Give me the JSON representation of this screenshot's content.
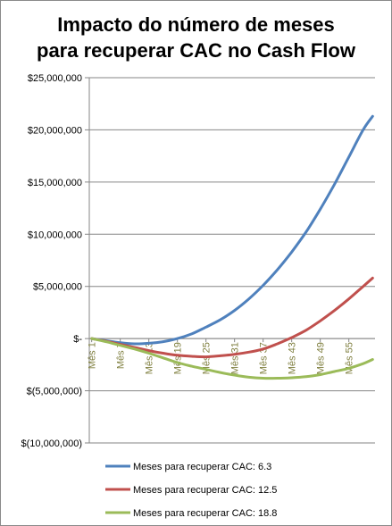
{
  "chart_data": {
    "type": "line",
    "title_lines": [
      "Impacto do número de meses",
      "para recuperar CAC no Cash Flow"
    ],
    "ylim": [
      -10000000,
      25000000
    ],
    "y_ticks": [
      {
        "value": 25000000,
        "label": "$25,000,000"
      },
      {
        "value": 20000000,
        "label": "$20,000,000"
      },
      {
        "value": 15000000,
        "label": "$15,000,000"
      },
      {
        "value": 10000000,
        "label": "$10,000,000"
      },
      {
        "value": 5000000,
        "label": "$5,000,000"
      },
      {
        "value": 0,
        "label": "$-"
      },
      {
        "value": -5000000,
        "label": "$(5,000,000)"
      },
      {
        "value": -10000000,
        "label": "$(10,000,000)"
      }
    ],
    "x_count": 60,
    "x_ticks": [
      {
        "month": 1,
        "label": "Mês 1"
      },
      {
        "month": 7,
        "label": "Mês 7"
      },
      {
        "month": 13,
        "label": "Mês 13"
      },
      {
        "month": 19,
        "label": "Mês 19"
      },
      {
        "month": 25,
        "label": "Mês 25"
      },
      {
        "month": 31,
        "label": "Mês 31"
      },
      {
        "month": 37,
        "label": "Mês 37"
      },
      {
        "month": 43,
        "label": "Mês 43"
      },
      {
        "month": 49,
        "label": "Mês 49"
      },
      {
        "month": 55,
        "label": "Mês 55"
      }
    ],
    "legend_position": "bottom",
    "series": [
      {
        "name": "Meses para recuperar CAC: 6.3",
        "color": "#4f81bd",
        "points": [
          [
            1,
            0
          ],
          [
            4,
            -200000
          ],
          [
            7,
            -400000
          ],
          [
            10,
            -500000
          ],
          [
            13,
            -450000
          ],
          [
            16,
            -300000
          ],
          [
            19,
            0
          ],
          [
            22,
            450000
          ],
          [
            25,
            1100000
          ],
          [
            28,
            1800000
          ],
          [
            31,
            2700000
          ],
          [
            34,
            3800000
          ],
          [
            37,
            5100000
          ],
          [
            40,
            6600000
          ],
          [
            43,
            8300000
          ],
          [
            46,
            10200000
          ],
          [
            49,
            12400000
          ],
          [
            52,
            14800000
          ],
          [
            55,
            17400000
          ],
          [
            58,
            20000000
          ],
          [
            60,
            21300000
          ]
        ]
      },
      {
        "name": "Meses para recuperar CAC: 12.5",
        "color": "#c0504d",
        "points": [
          [
            1,
            0
          ],
          [
            4,
            -250000
          ],
          [
            7,
            -550000
          ],
          [
            10,
            -850000
          ],
          [
            13,
            -1150000
          ],
          [
            16,
            -1400000
          ],
          [
            19,
            -1600000
          ],
          [
            22,
            -1700000
          ],
          [
            25,
            -1750000
          ],
          [
            28,
            -1650000
          ],
          [
            31,
            -1500000
          ],
          [
            34,
            -1300000
          ],
          [
            37,
            -1000000
          ],
          [
            40,
            -500000
          ],
          [
            43,
            100000
          ],
          [
            46,
            800000
          ],
          [
            49,
            1700000
          ],
          [
            52,
            2700000
          ],
          [
            55,
            3800000
          ],
          [
            58,
            5000000
          ],
          [
            60,
            5800000
          ]
        ]
      },
      {
        "name": "Meses para recuperar CAC: 18.8",
        "color": "#9bbb59",
        "points": [
          [
            1,
            0
          ],
          [
            4,
            -300000
          ],
          [
            7,
            -650000
          ],
          [
            10,
            -1000000
          ],
          [
            13,
            -1400000
          ],
          [
            16,
            -1850000
          ],
          [
            19,
            -2300000
          ],
          [
            22,
            -2650000
          ],
          [
            25,
            -2950000
          ],
          [
            28,
            -3250000
          ],
          [
            31,
            -3500000
          ],
          [
            34,
            -3700000
          ],
          [
            37,
            -3800000
          ],
          [
            40,
            -3800000
          ],
          [
            43,
            -3750000
          ],
          [
            46,
            -3650000
          ],
          [
            49,
            -3450000
          ],
          [
            52,
            -3150000
          ],
          [
            55,
            -2850000
          ],
          [
            58,
            -2400000
          ],
          [
            60,
            -2000000
          ]
        ]
      }
    ]
  }
}
